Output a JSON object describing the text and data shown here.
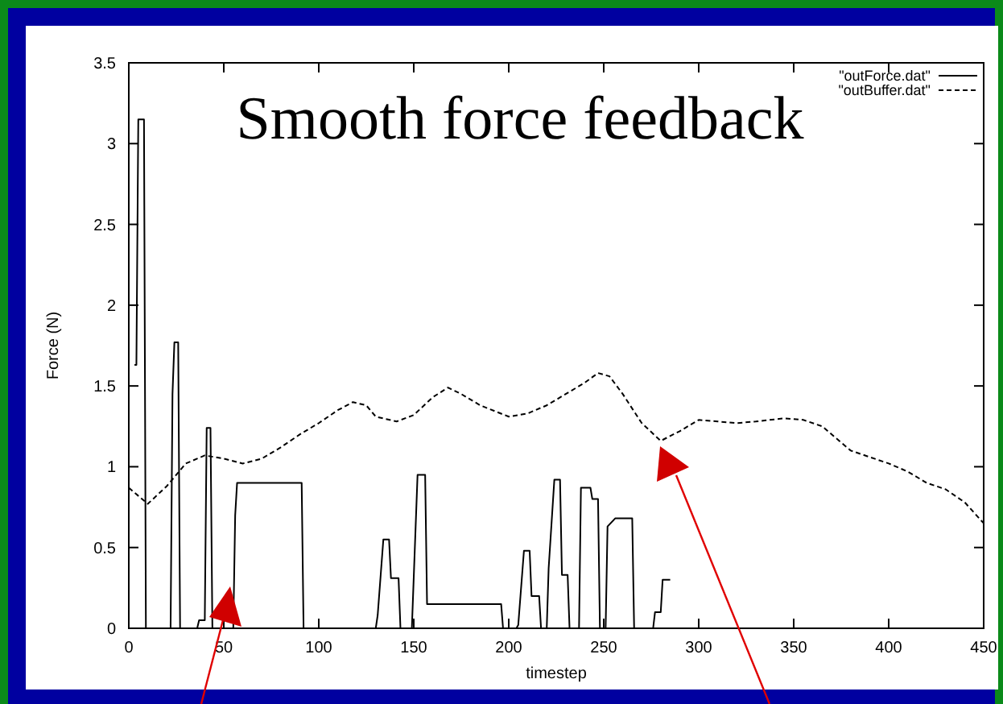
{
  "chart_data": {
    "type": "line",
    "title": "Smooth force feedback",
    "xlabel": "timestep",
    "ylabel": "Force (N)",
    "xlim": [
      0,
      450
    ],
    "xticks": [
      0,
      50,
      100,
      150,
      200,
      250,
      300,
      350,
      400,
      450
    ],
    "ylim": [
      0,
      3.5
    ],
    "yticks": [
      0,
      0.5,
      1,
      1.5,
      2,
      2.5,
      3,
      3.5
    ],
    "legend": "top right",
    "grid": false,
    "series": [
      {
        "name": "\"outForce.dat\"",
        "color": "#000000",
        "line_style": "solid",
        "x": [
          3,
          4,
          5,
          8,
          9,
          22,
          23,
          24,
          26,
          27,
          36,
          37,
          40,
          41,
          43,
          44,
          55,
          56,
          57,
          91,
          92,
          130,
          131,
          134,
          137,
          138,
          142,
          143,
          146,
          149,
          152,
          153,
          156,
          157,
          196,
          197,
          200,
          204,
          205,
          208,
          211,
          212,
          216,
          217,
          220,
          221,
          224,
          227,
          228,
          231,
          232,
          237,
          238,
          243,
          244,
          247,
          248,
          251,
          252,
          256,
          265,
          266,
          276,
          277,
          280,
          281,
          285
        ],
        "values": [
          1.63,
          1.63,
          3.15,
          3.15,
          0,
          0,
          1.45,
          1.77,
          1.77,
          0,
          0,
          0.05,
          0.05,
          1.24,
          1.24,
          0,
          0,
          0.7,
          0.9,
          0.9,
          0,
          0,
          0.08,
          0.55,
          0.55,
          0.31,
          0.31,
          0,
          0,
          0,
          0.95,
          0.95,
          0.95,
          0.15,
          0.15,
          0,
          0,
          0,
          0.02,
          0.48,
          0.48,
          0.2,
          0.2,
          0,
          0,
          0.37,
          0.92,
          0.92,
          0.33,
          0.33,
          0,
          0,
          0.87,
          0.87,
          0.8,
          0.8,
          0,
          0,
          0.63,
          0.68,
          0.68,
          0,
          0,
          0.1,
          0.1,
          0.3,
          0.3
        ]
      },
      {
        "name": "\"outBuffer.dat\"",
        "color": "#000000",
        "line_style": "dashed",
        "x": [
          0,
          10,
          20,
          30,
          40,
          50,
          60,
          70,
          80,
          90,
          100,
          110,
          118,
          125,
          130,
          141,
          150,
          160,
          168,
          175,
          185,
          200,
          210,
          220,
          230,
          240,
          247,
          253,
          260,
          270,
          280,
          290,
          300,
          310,
          320,
          330,
          345,
          355,
          365,
          380,
          390,
          400,
          410,
          420,
          430,
          440,
          450
        ],
        "values": [
          0.87,
          0.77,
          0.88,
          1.02,
          1.07,
          1.05,
          1.02,
          1.05,
          1.12,
          1.2,
          1.27,
          1.35,
          1.4,
          1.38,
          1.31,
          1.28,
          1.32,
          1.43,
          1.49,
          1.45,
          1.38,
          1.31,
          1.33,
          1.38,
          1.45,
          1.52,
          1.58,
          1.56,
          1.45,
          1.27,
          1.16,
          1.22,
          1.29,
          1.28,
          1.27,
          1.28,
          1.3,
          1.29,
          1.25,
          1.1,
          1.06,
          1.02,
          0.97,
          0.9,
          0.86,
          0.78,
          0.65
        ]
      }
    ]
  }
}
